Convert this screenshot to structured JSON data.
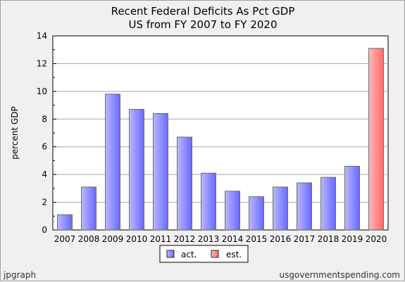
{
  "chart_data": {
    "type": "bar",
    "title": "Recent Federal Deficits As Pct GDP",
    "subtitle": "US from FY 2007 to FY 2020",
    "ylabel": "percent GDP",
    "xlabel": "",
    "ylim": [
      0,
      14
    ],
    "yticks": [
      0,
      2,
      4,
      6,
      8,
      10,
      12,
      14
    ],
    "grid": true,
    "legend_position": "bottom-center",
    "categories": [
      "2007",
      "2008",
      "2009",
      "2010",
      "2011",
      "2012",
      "2013",
      "2014",
      "2015",
      "2016",
      "2017",
      "2018",
      "2019",
      "2020"
    ],
    "series": [
      {
        "name": "act.",
        "color": "#8a8aff",
        "values": [
          1.1,
          3.1,
          9.8,
          8.7,
          8.4,
          6.7,
          4.1,
          2.8,
          2.4,
          3.1,
          3.4,
          3.8,
          4.6,
          null
        ]
      },
      {
        "name": "est.",
        "color": "#ff8a8a",
        "values": [
          null,
          null,
          null,
          null,
          null,
          null,
          null,
          null,
          null,
          null,
          null,
          null,
          null,
          13.1
        ]
      }
    ]
  },
  "credits": {
    "left": "jpgraph",
    "right": "usgovernmentspending.com"
  }
}
